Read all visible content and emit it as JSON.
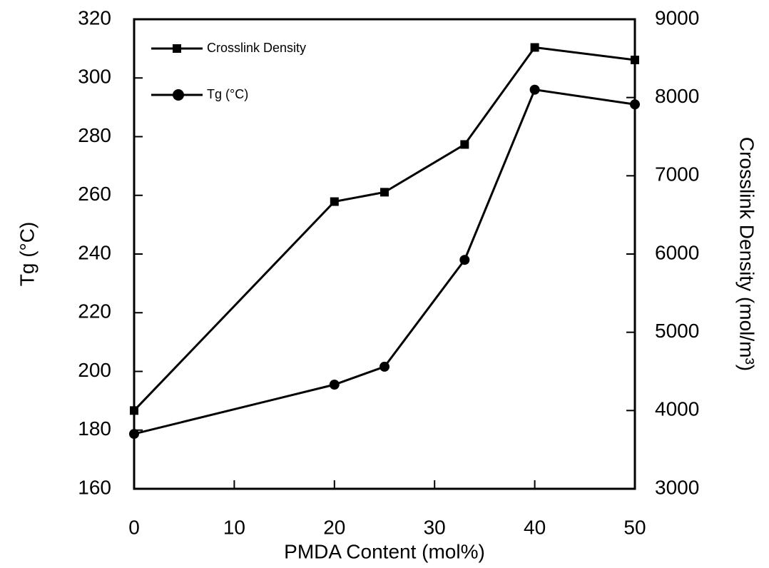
{
  "chart_data": {
    "type": "line",
    "x_label": "PMDA Content (mol%)",
    "y_label": "Tg (°C)",
    "y2_label": "Crosslink Density (mol/m³)",
    "x": [
      0,
      20,
      25,
      33,
      40,
      50
    ],
    "xlim": [
      0,
      50
    ],
    "xticks": [
      0,
      10,
      20,
      30,
      40,
      50
    ],
    "ylim": [
      160,
      320
    ],
    "yticks": [
      160,
      180,
      200,
      220,
      240,
      260,
      280,
      300,
      320
    ],
    "y2lim": [
      3000,
      9000
    ],
    "y2ticks": [
      3000,
      4000,
      5000,
      6000,
      7000,
      8000,
      9000
    ],
    "legend": "upper left",
    "series": [
      {
        "name": "Crosslink Density",
        "color": "#000000",
        "marker": "square",
        "axis": "y2",
        "values": [
          4000,
          6670,
          6790,
          7400,
          8640,
          8480
        ]
      },
      {
        "name": "Tg (°C)",
        "color": "#000000",
        "marker": "circle",
        "values": [
          178.7,
          195.5,
          201.6,
          238,
          296,
          291
        ]
      }
    ]
  }
}
